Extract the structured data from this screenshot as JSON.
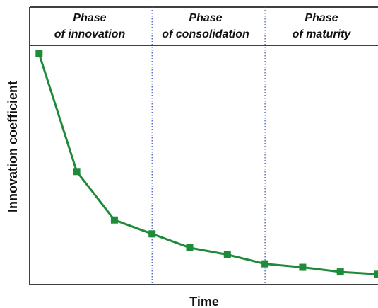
{
  "chart_data": {
    "type": "line",
    "title": "",
    "xlabel": "Time",
    "ylabel": "Innovation coefficient",
    "grid": false,
    "legend": "none",
    "line_color": "#1f8a3a",
    "divider_color": "#3b4cc0",
    "phases": [
      {
        "line1": "Phase",
        "line2": "of innovation"
      },
      {
        "line1": "Phase",
        "line2": "of consolidation"
      },
      {
        "line1": "Phase",
        "line2": "of maturity"
      }
    ],
    "phase_boundaries": [
      3.0,
      6.0
    ],
    "xlim": [
      -0.25,
      9.0
    ],
    "ylim": [
      0,
      100
    ],
    "x": [
      0,
      1,
      2,
      3,
      4,
      5,
      6,
      7,
      8,
      9
    ],
    "values": [
      100,
      49,
      28,
      22,
      16,
      13,
      9,
      7.5,
      5.5,
      4.5
    ]
  }
}
